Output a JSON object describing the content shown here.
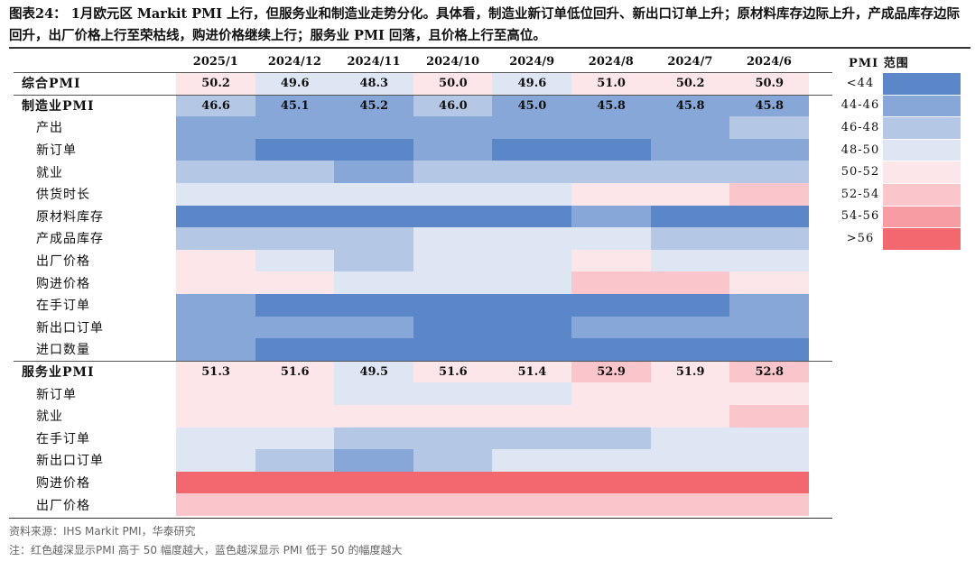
{
  "title": "图表24： 1月欧元区 Markit PMI 上行，但服务业和制造业走势分化。具体看，制造业新订单低位回升、新出口订单上升；原材料库存边际上升，产成品库存边际回升，出厂价格上行至荣枯线，购进价格继续上行；服务业 PMI 回落，且价格上行至高位。",
  "table": {
    "columns": [
      "2025/1",
      "2024/12",
      "2024/11",
      "2024/10",
      "2024/9",
      "2024/8",
      "2024/7",
      "2024/6"
    ],
    "rows": [
      {
        "label": "综合PMI",
        "main": true,
        "values": [
          "50.2",
          "49.6",
          "48.3",
          "50.0",
          "49.6",
          "51.0",
          "50.2",
          "50.9"
        ],
        "levels": [
          4,
          3,
          3,
          4,
          3,
          4,
          4,
          4
        ]
      },
      {
        "label": "制造业PMI",
        "main": true,
        "values": [
          "46.6",
          "45.1",
          "45.2",
          "46.0",
          "45.0",
          "45.8",
          "45.8",
          "45.8"
        ],
        "levels": [
          2,
          1,
          1,
          2,
          1,
          1,
          1,
          1
        ]
      },
      {
        "label": "产出",
        "levels": [
          1,
          1,
          1,
          1,
          1,
          1,
          1,
          2
        ]
      },
      {
        "label": "新订单",
        "levels": [
          1,
          0,
          0,
          1,
          0,
          0,
          1,
          1
        ]
      },
      {
        "label": "就业",
        "levels": [
          2,
          2,
          1,
          2,
          2,
          2,
          2,
          2
        ]
      },
      {
        "label": "供货时长",
        "levels": [
          3,
          3,
          3,
          3,
          3,
          4,
          4,
          5
        ]
      },
      {
        "label": "原材料库存",
        "levels": [
          0,
          0,
          0,
          0,
          0,
          1,
          0,
          0
        ]
      },
      {
        "label": "产成品库存",
        "levels": [
          2,
          2,
          2,
          3,
          3,
          3,
          2,
          2
        ]
      },
      {
        "label": "出厂价格",
        "levels": [
          4,
          3,
          2,
          3,
          3,
          4,
          3,
          3
        ]
      },
      {
        "label": "购进价格",
        "levels": [
          4,
          4,
          3,
          3,
          3,
          5,
          5,
          4
        ]
      },
      {
        "label": "在手订单",
        "levels": [
          1,
          0,
          0,
          0,
          0,
          0,
          0,
          1
        ]
      },
      {
        "label": "新出口订单",
        "levels": [
          1,
          1,
          1,
          0,
          0,
          1,
          1,
          1
        ]
      },
      {
        "label": "进口数量",
        "levels": [
          1,
          0,
          0,
          0,
          0,
          0,
          0,
          0
        ]
      },
      {
        "label": "服务业PMI",
        "main": true,
        "values": [
          "51.3",
          "51.6",
          "49.5",
          "51.6",
          "51.4",
          "52.9",
          "51.9",
          "52.8"
        ],
        "levels": [
          4,
          4,
          3,
          4,
          4,
          5,
          4,
          5
        ]
      },
      {
        "label": "新订单",
        "levels": [
          4,
          4,
          3,
          3,
          3,
          4,
          4,
          4
        ]
      },
      {
        "label": "就业",
        "levels": [
          4,
          4,
          4,
          4,
          4,
          4,
          4,
          5
        ]
      },
      {
        "label": "在手订单",
        "levels": [
          3,
          3,
          2,
          2,
          2,
          2,
          3,
          3
        ]
      },
      {
        "label": "新出口订单",
        "levels": [
          3,
          2,
          1,
          2,
          3,
          3,
          3,
          3
        ]
      },
      {
        "label": "购进价格",
        "levels": [
          7,
          7,
          7,
          7,
          7,
          7,
          7,
          7
        ]
      },
      {
        "label": "出厂价格",
        "levels": [
          5,
          5,
          5,
          5,
          5,
          5,
          5,
          5
        ]
      }
    ]
  },
  "legend": {
    "title": "PMI 范围",
    "items": [
      {
        "label": "<44",
        "color": "#5b87c8"
      },
      {
        "label": "44-46",
        "color": "#87a7d8"
      },
      {
        "label": "46-48",
        "color": "#b4c8e6"
      },
      {
        "label": "48-50",
        "color": "#dfe6f3"
      },
      {
        "label": "50-52",
        "color": "#fde6ea"
      },
      {
        "label": "52-54",
        "color": "#fbc6cb"
      },
      {
        "label": "54-56",
        "color": "#f89ca3"
      },
      {
        "label": ">56",
        "color": "#f3676f"
      }
    ]
  },
  "source": "资料来源：IHS Markit PMI，华泰研究",
  "note": "注：红色越深显示PMI 高于 50 幅度越大，蓝色越深显示 PMI 低于 50 的幅度越大"
}
